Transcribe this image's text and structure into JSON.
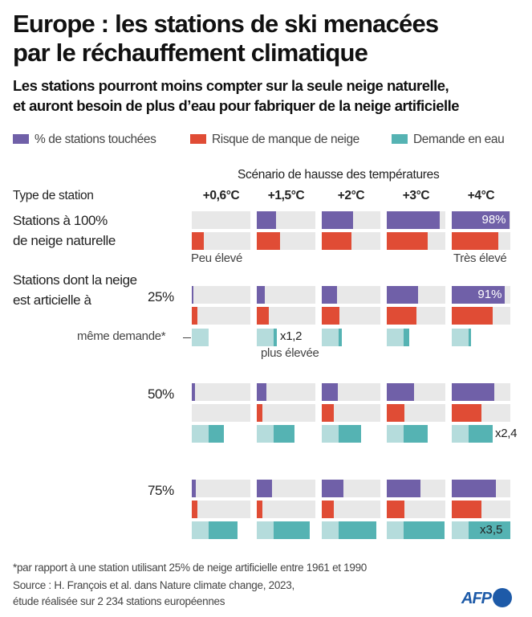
{
  "title_lines": [
    "Europe : les stations de ski menacées",
    "par le réchauffement climatique"
  ],
  "subtitle_lines": [
    "Les stations pourront moins compter sur la seule neige naturelle,",
    "et auront besoin de plus d’eau pour fabriquer de la neige artificielle"
  ],
  "legend": [
    {
      "label": "% de stations touchées",
      "color": "#7060a8"
    },
    {
      "label": "Risque de manque de neige",
      "color": "#e04c35"
    },
    {
      "label": "Demande en eau",
      "color": "#55b3b3"
    }
  ],
  "colors": {
    "track": "#e8e8e8",
    "water_base": "#b5dcdc"
  },
  "scenario_label": "Scénario de hausse des températures",
  "type_label": "Type de station",
  "chart_data": {
    "type": "bar",
    "categories": [
      "+0,6°C",
      "+1,5°C",
      "+2°C",
      "+3°C",
      "+4°C"
    ],
    "groups": [
      {
        "label": "Stations à 100%\nde neige naturelle",
        "stations_pct": [
          0,
          33,
          54,
          91,
          98
        ],
        "snow_risk": [
          20,
          40,
          50,
          70,
          80
        ],
        "risk_low_label": "Peu élevé",
        "risk_high_label": "Très élevé",
        "value_label": "98%"
      },
      {
        "label": "Stations dont la neige\nest articielle à",
        "share": "25%",
        "stations_pct": [
          3,
          14,
          26,
          53,
          91
        ],
        "snow_risk": [
          10,
          20,
          30,
          50,
          70
        ],
        "water_demand_multiplier": [
          1.0,
          1.2,
          1.2,
          1.3,
          1.15
        ],
        "value_label": "91%",
        "same_demand_label": "même demande*",
        "mult_label": "x1,2",
        "mult_sub": "plus élevée"
      },
      {
        "share": "50%",
        "stations_pct": [
          5,
          16,
          27,
          47,
          72
        ],
        "snow_risk": [
          0,
          10,
          20,
          30,
          50
        ],
        "water_demand_multiplier": [
          1.9,
          2.2,
          2.3,
          2.4,
          2.4
        ],
        "mult_label": "x2,4"
      },
      {
        "share": "75%",
        "stations_pct": [
          7,
          26,
          37,
          57,
          75
        ],
        "snow_risk": [
          10,
          10,
          20,
          30,
          50
        ],
        "water_demand_multiplier": [
          2.7,
          3.1,
          3.2,
          3.4,
          3.5
        ],
        "mult_label": "x3,5"
      }
    ],
    "water_base_share": 29,
    "xlim": [
      0,
      100
    ]
  },
  "footnote": "*par rapport à une station utilisant 25% de neige artificielle entre 1961 et 1990",
  "source_lines": [
    "Source : H. François et al. dans Nature climate change, 2023,",
    "étude réalisée sur 2 234 stations européennes"
  ],
  "logo": "AFP"
}
